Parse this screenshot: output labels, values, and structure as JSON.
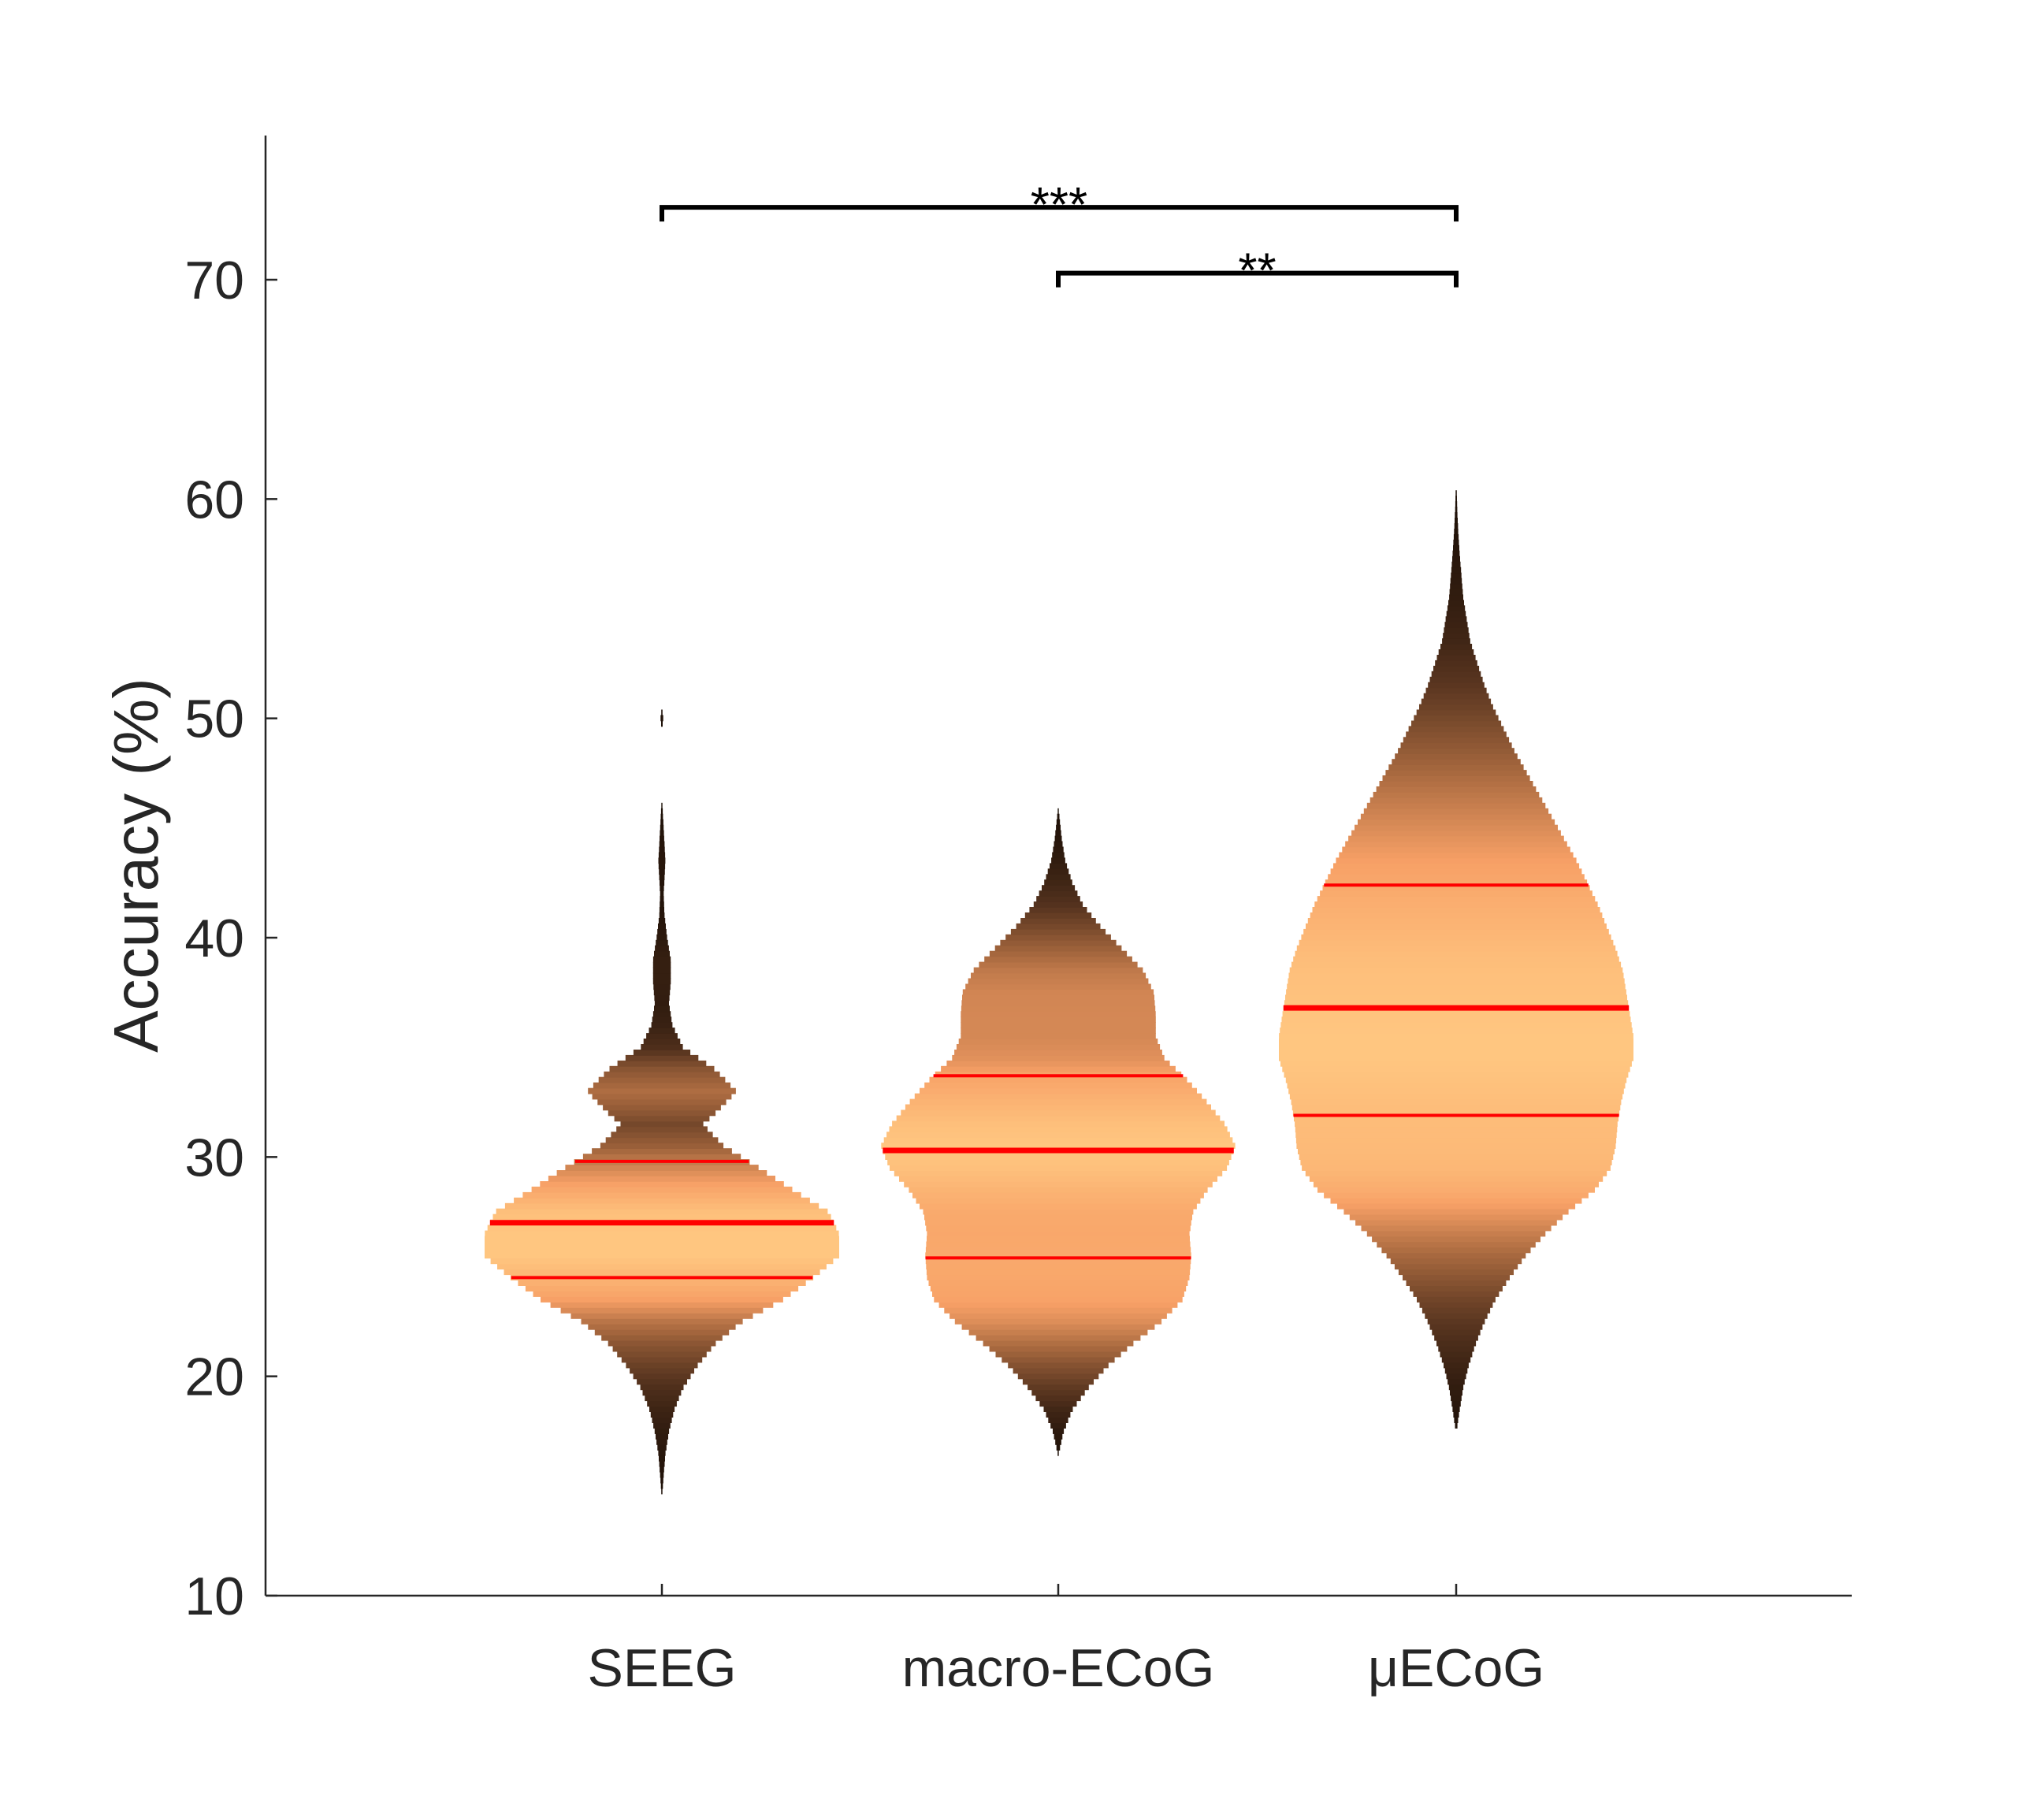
{
  "chart_data": {
    "type": "violin",
    "title": "",
    "xlabel": "",
    "ylabel": "Accuracy (%)",
    "ylim": [
      10,
      76
    ],
    "yticks": [
      10,
      20,
      30,
      40,
      50,
      60,
      70
    ],
    "grid": false,
    "categories": [
      "SEEG",
      "macro-ECoG",
      "μECoG"
    ],
    "colormap": [
      "#1a0e06",
      "#5a3620",
      "#a8693f",
      "#f7a066",
      "#ffc680"
    ],
    "quartile_color": "#ff0000",
    "groups": [
      {
        "category": "SEEG",
        "min": 14.4,
        "q1": 24.5,
        "median": 27.0,
        "q3": 29.8,
        "max": 51.4,
        "density_profile": [
          [
            14.4,
            0.0
          ],
          [
            15.5,
            0.01
          ],
          [
            16.5,
            0.02
          ],
          [
            17.5,
            0.04
          ],
          [
            18.5,
            0.07
          ],
          [
            19.5,
            0.12
          ],
          [
            20.5,
            0.2
          ],
          [
            21.5,
            0.3
          ],
          [
            22.5,
            0.45
          ],
          [
            23.5,
            0.68
          ],
          [
            24.5,
            0.85
          ],
          [
            25.5,
            1.0
          ],
          [
            26.5,
            1.0
          ],
          [
            27.5,
            0.94
          ],
          [
            28.5,
            0.74
          ],
          [
            29.5,
            0.55
          ],
          [
            30.5,
            0.35
          ],
          [
            31.5,
            0.23
          ],
          [
            32.0,
            0.3
          ],
          [
            33.0,
            0.42
          ],
          [
            34.0,
            0.3
          ],
          [
            35.0,
            0.12
          ],
          [
            36.0,
            0.06
          ],
          [
            37.0,
            0.04
          ],
          [
            38.0,
            0.05
          ],
          [
            39.0,
            0.05
          ],
          [
            40.0,
            0.03
          ],
          [
            41.0,
            0.015
          ],
          [
            42.0,
            0.01
          ],
          [
            43.5,
            0.02
          ],
          [
            45.0,
            0.01
          ],
          [
            46.5,
            0.0
          ],
          [
            49.5,
            0.0
          ],
          [
            50.0,
            0.008
          ],
          [
            50.5,
            0.0
          ],
          [
            51.4,
            0.0
          ]
        ]
      },
      {
        "category": "macro-ECoG",
        "min": 16.4,
        "q1": 25.4,
        "median": 30.3,
        "q3": 33.7,
        "max": 46.0,
        "density_profile": [
          [
            16.4,
            0.0
          ],
          [
            17.5,
            0.03
          ],
          [
            18.5,
            0.08
          ],
          [
            19.5,
            0.17
          ],
          [
            20.5,
            0.28
          ],
          [
            21.5,
            0.42
          ],
          [
            22.5,
            0.58
          ],
          [
            23.5,
            0.7
          ],
          [
            24.5,
            0.74
          ],
          [
            25.5,
            0.75
          ],
          [
            26.5,
            0.74
          ],
          [
            27.5,
            0.76
          ],
          [
            28.5,
            0.84
          ],
          [
            29.5,
            0.95
          ],
          [
            30.5,
            1.0
          ],
          [
            31.5,
            0.94
          ],
          [
            32.5,
            0.84
          ],
          [
            33.5,
            0.73
          ],
          [
            34.5,
            0.6
          ],
          [
            35.5,
            0.55
          ],
          [
            36.5,
            0.55
          ],
          [
            37.5,
            0.54
          ],
          [
            38.5,
            0.48
          ],
          [
            39.5,
            0.36
          ],
          [
            40.5,
            0.24
          ],
          [
            41.5,
            0.14
          ],
          [
            42.5,
            0.08
          ],
          [
            43.5,
            0.04
          ],
          [
            44.5,
            0.02
          ],
          [
            46.0,
            0.0
          ]
        ]
      },
      {
        "category": "μECoG",
        "min": 17.4,
        "q1": 31.9,
        "median": 36.8,
        "q3": 42.4,
        "max": 61.2,
        "density_profile": [
          [
            17.4,
            0.0
          ],
          [
            18.5,
            0.02
          ],
          [
            19.5,
            0.04
          ],
          [
            20.5,
            0.07
          ],
          [
            21.5,
            0.11
          ],
          [
            22.5,
            0.16
          ],
          [
            23.5,
            0.22
          ],
          [
            24.5,
            0.3
          ],
          [
            25.5,
            0.39
          ],
          [
            26.5,
            0.5
          ],
          [
            27.5,
            0.63
          ],
          [
            28.5,
            0.78
          ],
          [
            29.5,
            0.87
          ],
          [
            30.5,
            0.9
          ],
          [
            31.5,
            0.91
          ],
          [
            32.5,
            0.93
          ],
          [
            33.5,
            0.96
          ],
          [
            34.5,
            1.0
          ],
          [
            35.5,
            1.0
          ],
          [
            36.5,
            0.98
          ],
          [
            37.5,
            0.96
          ],
          [
            38.5,
            0.94
          ],
          [
            39.5,
            0.9
          ],
          [
            40.5,
            0.85
          ],
          [
            41.5,
            0.8
          ],
          [
            42.5,
            0.74
          ],
          [
            43.5,
            0.68
          ],
          [
            44.5,
            0.61
          ],
          [
            45.5,
            0.54
          ],
          [
            46.5,
            0.47
          ],
          [
            47.5,
            0.4
          ],
          [
            48.5,
            0.33
          ],
          [
            49.5,
            0.27
          ],
          [
            50.5,
            0.21
          ],
          [
            51.5,
            0.16
          ],
          [
            52.5,
            0.12
          ],
          [
            53.5,
            0.08
          ],
          [
            54.5,
            0.06
          ],
          [
            55.5,
            0.04
          ],
          [
            56.5,
            0.03
          ],
          [
            57.5,
            0.02
          ],
          [
            58.5,
            0.012
          ],
          [
            59.5,
            0.006
          ],
          [
            61.2,
            0.0
          ]
        ]
      }
    ],
    "significance": [
      {
        "from": "SEEG",
        "to": "μECoG",
        "y": 73.3,
        "label": "***"
      },
      {
        "from": "macro-ECoG",
        "to": "μECoG",
        "y": 70.3,
        "label": "**"
      }
    ]
  }
}
